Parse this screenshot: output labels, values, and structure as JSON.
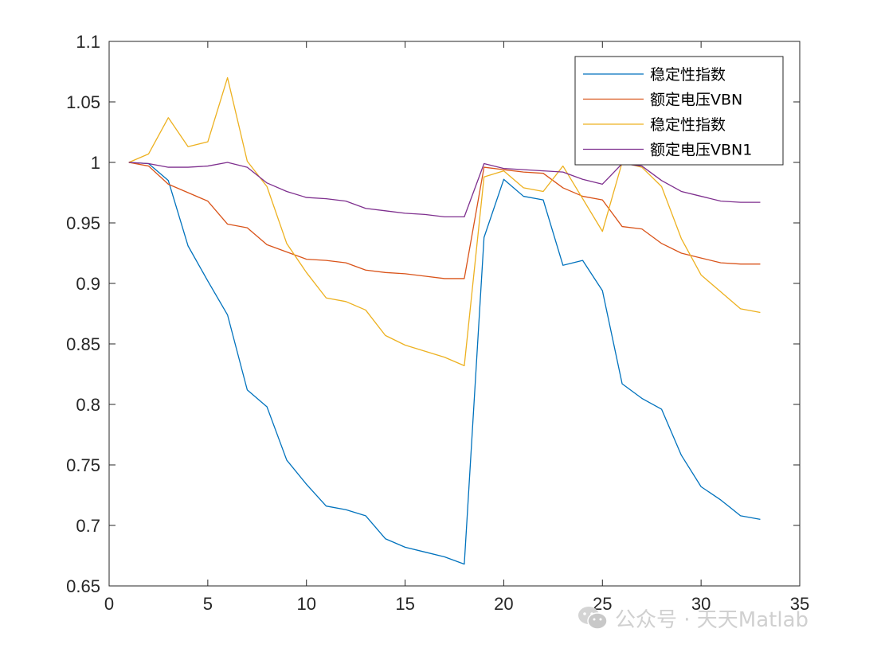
{
  "chart_data": {
    "type": "line",
    "xlim": [
      0,
      35
    ],
    "ylim": [
      0.65,
      1.1
    ],
    "xticks": [
      0,
      5,
      10,
      15,
      20,
      25,
      30,
      35
    ],
    "yticks": [
      0.65,
      0.7,
      0.75,
      0.8,
      0.85,
      0.9,
      0.95,
      1,
      1.05,
      1.1
    ],
    "xtick_labels": [
      "0",
      "5",
      "10",
      "15",
      "20",
      "25",
      "30",
      "35"
    ],
    "ytick_labels": [
      "0.65",
      "0.7",
      "0.75",
      "0.8",
      "0.85",
      "0.9",
      "0.95",
      "1",
      "1.05",
      "1.1"
    ],
    "grid": false,
    "legend_position": "top-right",
    "title": "",
    "xlabel": "",
    "ylabel": "",
    "x": [
      1,
      2,
      3,
      4,
      5,
      6,
      7,
      8,
      9,
      10,
      11,
      12,
      13,
      14,
      15,
      16,
      17,
      18,
      19,
      20,
      21,
      22,
      23,
      24,
      25,
      26,
      27,
      28,
      29,
      30,
      31,
      32,
      33
    ],
    "series": [
      {
        "name": "稳定性指数",
        "color": "#0072BD",
        "values": [
          1.0,
          0.999,
          0.985,
          0.931,
          0.902,
          0.874,
          0.812,
          0.798,
          0.754,
          0.734,
          0.716,
          0.713,
          0.708,
          0.689,
          0.682,
          0.678,
          0.674,
          0.668,
          0.938,
          0.986,
          0.972,
          0.969,
          0.915,
          0.919,
          0.894,
          0.817,
          0.805,
          0.796,
          0.758,
          0.732,
          0.721,
          0.708,
          0.705
        ]
      },
      {
        "name": "额定电压VBN",
        "color": "#D95319",
        "values": [
          1.0,
          0.997,
          0.982,
          0.975,
          0.968,
          0.949,
          0.946,
          0.932,
          0.926,
          0.92,
          0.919,
          0.917,
          0.911,
          0.909,
          0.908,
          0.906,
          0.904,
          0.904,
          0.996,
          0.994,
          0.992,
          0.991,
          0.979,
          0.972,
          0.969,
          0.947,
          0.945,
          0.933,
          0.925,
          0.921,
          0.917,
          0.916,
          0.916
        ]
      },
      {
        "name": "稳定性指数",
        "color": "#EDB120",
        "values": [
          1.0,
          1.007,
          1.037,
          1.013,
          1.017,
          1.07,
          1.001,
          0.98,
          0.933,
          0.909,
          0.888,
          0.885,
          0.878,
          0.857,
          0.849,
          0.844,
          0.839,
          0.832,
          0.988,
          0.993,
          0.979,
          0.976,
          0.997,
          0.97,
          0.943,
          1.0,
          0.996,
          0.98,
          0.937,
          0.907,
          0.893,
          0.879,
          0.876
        ]
      },
      {
        "name": "额定电压VBN1",
        "color": "#7E2F8E",
        "values": [
          1.0,
          0.999,
          0.996,
          0.996,
          0.997,
          1.0,
          0.996,
          0.983,
          0.976,
          0.971,
          0.97,
          0.968,
          0.962,
          0.96,
          0.958,
          0.957,
          0.955,
          0.955,
          0.999,
          0.995,
          0.994,
          0.993,
          0.992,
          0.986,
          0.982,
          0.999,
          0.997,
          0.985,
          0.976,
          0.972,
          0.968,
          0.967,
          0.967
        ]
      }
    ]
  },
  "watermark": {
    "text": "公众号 · 天天Matlab",
    "icon": "wechat-icon"
  }
}
